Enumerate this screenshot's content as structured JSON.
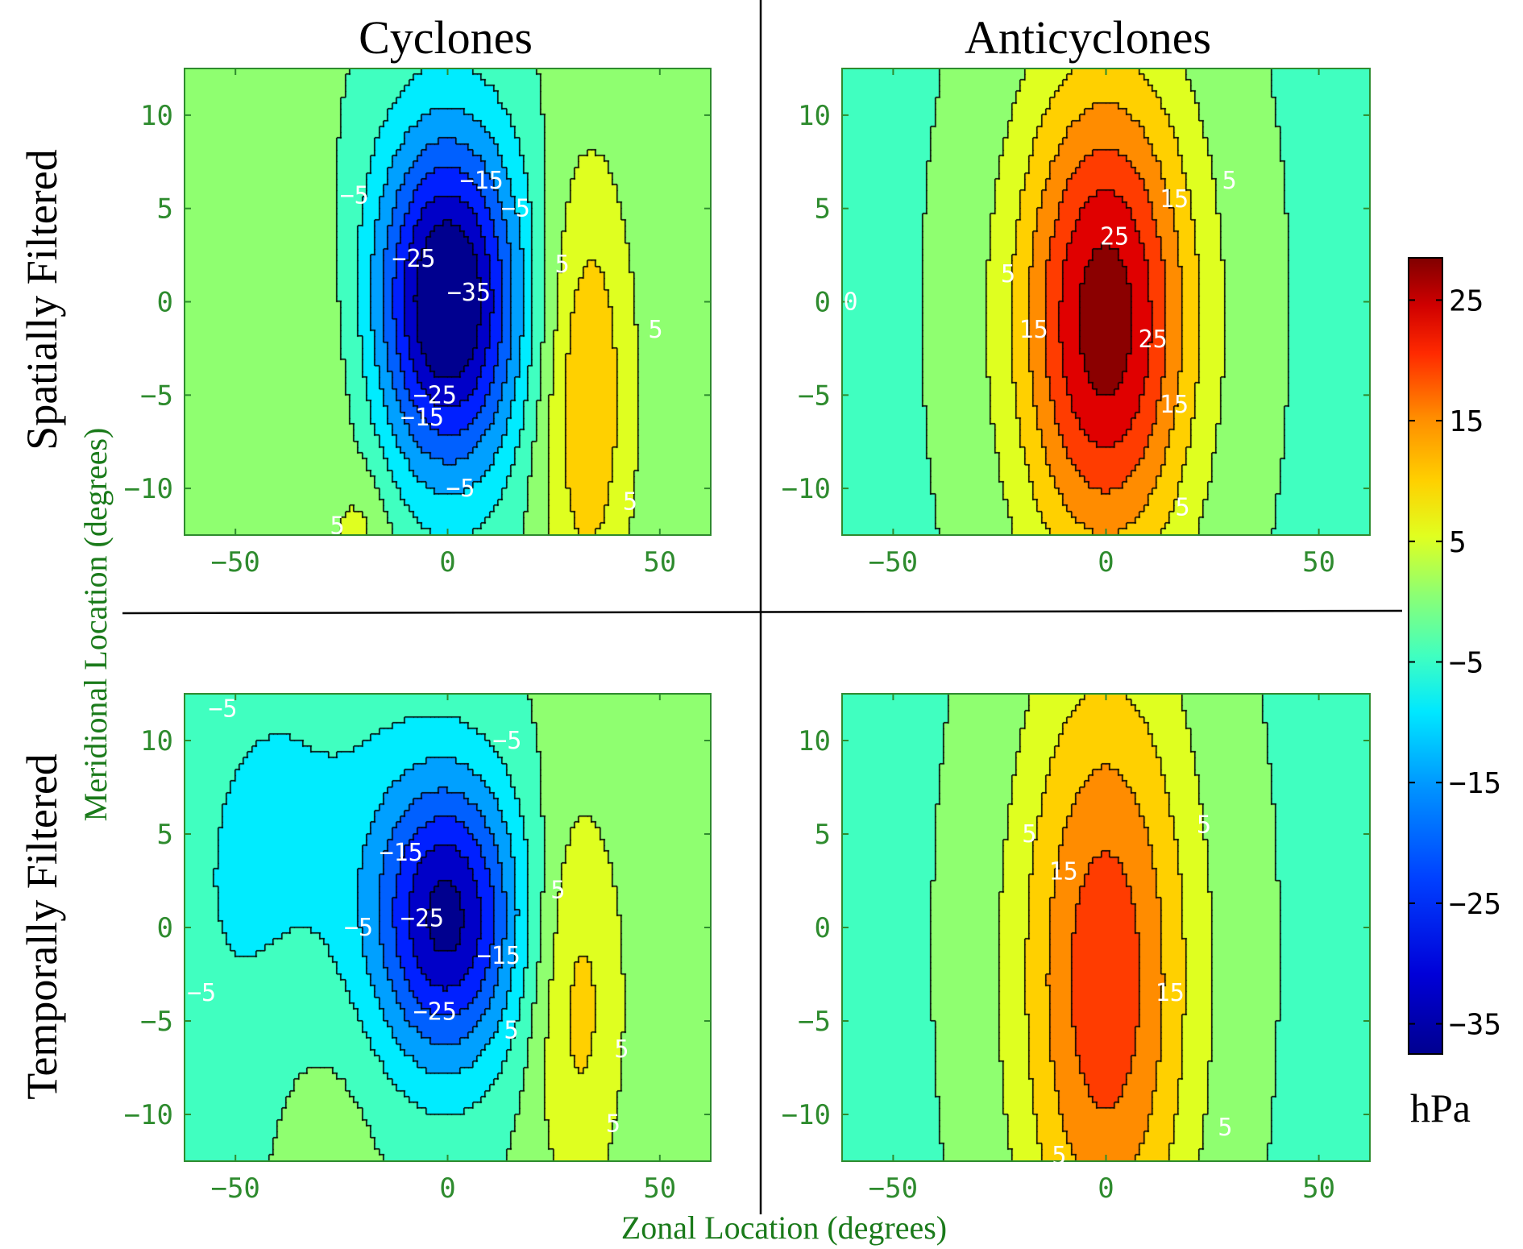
{
  "column_titles": [
    "Cyclones",
    "Anticyclones"
  ],
  "row_titles": [
    "Spatially Filtered",
    "Temporally Filtered"
  ],
  "x_axis_title": "Zonal Location (degrees)",
  "y_axis_title": "Meridional Location (degrees)",
  "x_ticks": [
    "−50",
    "0",
    "50"
  ],
  "y_ticks": [
    "10",
    "5",
    "0",
    "−5",
    "−10"
  ],
  "colorbar": {
    "unit": "hPa",
    "ticks": [
      "25",
      "15",
      "5",
      "−5",
      "−15",
      "−25",
      "−35"
    ],
    "colors": {
      "-35": "#00008f",
      "-30": "#0000c8",
      "-25": "#0020ff",
      "-20": "#0060ff",
      "-15": "#00a0ff",
      "-10": "#00ecff",
      "-5": "#40ffc0",
      "0": "#8fff70",
      "5": "#dfff20",
      "10": "#ffd000",
      "15": "#ff8c00",
      "20": "#ff3c00",
      "25": "#e00000",
      "30": "#8b0000"
    }
  },
  "chart_data": {
    "type": "contour",
    "xlim": [
      -62,
      62
    ],
    "ylim": [
      -12.5,
      12.5
    ],
    "contour_interval": 5,
    "panels": [
      {
        "id": "spatial-cyclones",
        "row": "Spatially Filtered",
        "column": "Cyclones",
        "contour_labels": [
          {
            "text": "−5",
            "x": -22,
            "y": 5.7
          },
          {
            "text": "−15",
            "x": 8,
            "y": 6.5
          },
          {
            "text": "−5",
            "x": 16,
            "y": 5
          },
          {
            "text": "−25",
            "x": -8,
            "y": 2.3
          },
          {
            "text": "−35",
            "x": 5,
            "y": 0.5
          },
          {
            "text": "5",
            "x": 27,
            "y": 2
          },
          {
            "text": "5",
            "x": 49,
            "y": -1.5
          },
          {
            "text": "−25",
            "x": -3,
            "y": -5
          },
          {
            "text": "−15",
            "x": -6,
            "y": -6.2
          },
          {
            "text": "−5",
            "x": 3,
            "y": -10
          },
          {
            "text": "5",
            "x": 43,
            "y": -10.7
          },
          {
            "text": "5",
            "x": -26,
            "y": -12
          }
        ]
      },
      {
        "id": "spatial-anticyclones",
        "row": "Spatially Filtered",
        "column": "Anticyclones",
        "contour_labels": [
          {
            "text": "5",
            "x": 29,
            "y": 6.5
          },
          {
            "text": "15",
            "x": 16,
            "y": 5.5
          },
          {
            "text": "25",
            "x": 2,
            "y": 3.5
          },
          {
            "text": "5",
            "x": -23,
            "y": 1.5
          },
          {
            "text": "0",
            "x": -60,
            "y": 0
          },
          {
            "text": "15",
            "x": -17,
            "y": -1.5
          },
          {
            "text": "25",
            "x": 11,
            "y": -2
          },
          {
            "text": "15",
            "x": 16,
            "y": -5.5
          },
          {
            "text": "5",
            "x": 18,
            "y": -11
          }
        ]
      },
      {
        "id": "temporal-cyclones",
        "row": "Temporally Filtered",
        "column": "Cyclones",
        "contour_labels": [
          {
            "text": "−5",
            "x": -53,
            "y": 11.7
          },
          {
            "text": "−5",
            "x": 14,
            "y": 10
          },
          {
            "text": "−15",
            "x": -11,
            "y": 4
          },
          {
            "text": "−25",
            "x": -6,
            "y": 0.5
          },
          {
            "text": "−5",
            "x": -21,
            "y": 0
          },
          {
            "text": "−15",
            "x": 12,
            "y": -1.5
          },
          {
            "text": "5",
            "x": 26,
            "y": 2
          },
          {
            "text": "−25",
            "x": -3,
            "y": -4.5
          },
          {
            "text": "5",
            "x": 15,
            "y": -5.5
          },
          {
            "text": "−5",
            "x": -58,
            "y": -3.5
          },
          {
            "text": "5",
            "x": 41,
            "y": -6.5
          },
          {
            "text": "5",
            "x": 39,
            "y": -10.5
          }
        ]
      },
      {
        "id": "temporal-anticyclones",
        "row": "Temporally Filtered",
        "column": "Anticyclones",
        "contour_labels": [
          {
            "text": "5",
            "x": -18,
            "y": 5
          },
          {
            "text": "5",
            "x": 23,
            "y": 5.5
          },
          {
            "text": "15",
            "x": -10,
            "y": 3
          },
          {
            "text": "15",
            "x": 15,
            "y": -3.5
          },
          {
            "text": "5",
            "x": -11,
            "y": -12.2
          },
          {
            "text": "5",
            "x": 28,
            "y": -10.7
          }
        ]
      }
    ]
  }
}
